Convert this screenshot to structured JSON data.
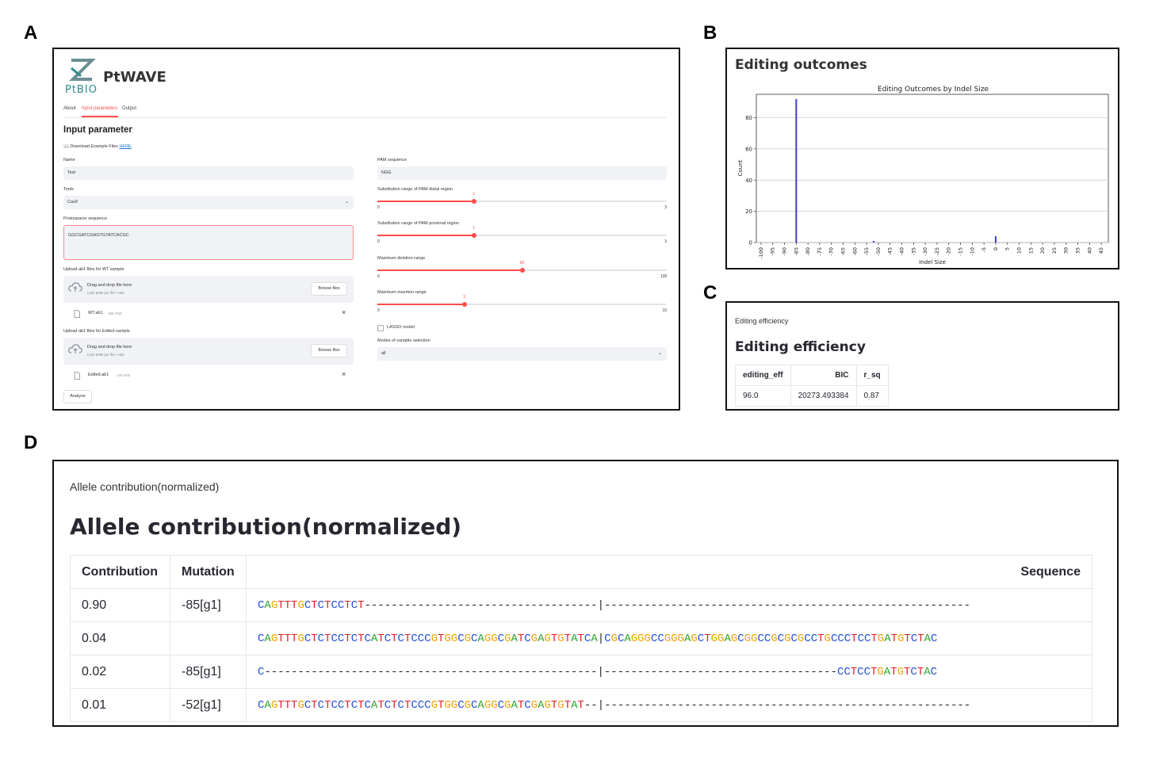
{
  "panel_labels": {
    "a": "A",
    "b": "B",
    "c": "C",
    "d": "D"
  },
  "app": {
    "logo_text": "PtBIO",
    "title": "PtWAVE",
    "tabs": [
      "About",
      "Input parameters",
      "Output"
    ],
    "active_tab": "Input parameters",
    "section_title": "Input parameter",
    "download_prefix": "📖 Download Example Files ",
    "download_link": "HERE",
    "download_suffix": ".",
    "name": {
      "label": "Name",
      "value": "Test"
    },
    "tools": {
      "label": "Tools",
      "value": "Cas9"
    },
    "protospacer": {
      "label": "Protospacer sequence",
      "value": "GGCGATCGAGTGTATCACGC"
    },
    "upload_wt": {
      "label": "Upload ab1 files for WT sample",
      "drag": "Drag and drop file here",
      "limit": "Limit 5MB per file • AB1",
      "browse": "Browse files",
      "file": "WT.ab1",
      "size": "188.7KB"
    },
    "upload_edited": {
      "label": "Upload ab1 files for Edited sample",
      "drag": "Drag and drop file here",
      "limit": "Limit 5MB per file • AB1",
      "browse": "Browse files",
      "file": "Edited.ab1",
      "size": "178.4KB"
    },
    "analyze": "Analyze",
    "pam": {
      "label": "PAM sequence",
      "value": "NGG"
    },
    "sliders": [
      {
        "label": "Substitution range of PAM-distal region",
        "value": 1,
        "min": 0,
        "max": 3
      },
      {
        "label": "Substitution range of PAM-proximal region",
        "value": 1,
        "min": 0,
        "max": 3
      },
      {
        "label": "Maximum deletion range",
        "value": 50,
        "min": 0,
        "max": 100
      },
      {
        "label": "Maximum insertion range",
        "value": 3,
        "min": 0,
        "max": 10
      }
    ],
    "lasso": {
      "label": "LASSO model",
      "checked": false
    },
    "modes": {
      "label": "Modes of variable selection",
      "value": "all"
    }
  },
  "editing_outcomes": {
    "heading": "Editing outcomes",
    "chart_data": {
      "type": "bar",
      "title": "Editing Outcomes by Indel Size",
      "xlabel": "Indel Size",
      "ylabel": "Count",
      "xlim": [
        -102,
        48
      ],
      "ylim": [
        0,
        95
      ],
      "yticks": [
        0,
        20,
        40,
        60,
        80
      ],
      "xticks": [
        -100,
        -95,
        -90,
        -85,
        -80,
        -75,
        -70,
        -65,
        -60,
        -55,
        -50,
        -45,
        -40,
        -35,
        -30,
        -25,
        -20,
        -15,
        -10,
        -5,
        0,
        5,
        10,
        15,
        20,
        25,
        30,
        35,
        40,
        45
      ],
      "x": [
        -85,
        -52,
        0
      ],
      "values": [
        92,
        1,
        4
      ],
      "grid": true,
      "bar_color": "#3b3bd6"
    }
  },
  "editing_efficiency": {
    "small_title": "Editing efficiency",
    "title": "Editing efficiency",
    "columns": [
      "editing_eff",
      "BIC",
      "r_sq"
    ],
    "rows": [
      [
        "96.0",
        "20273.493384",
        "0.87"
      ]
    ]
  },
  "allele": {
    "small_title": "Allele contribution(normalized)",
    "title": "Allele contribution(normalized)",
    "columns": [
      "Contribution",
      "Mutation",
      "Sequence"
    ],
    "rows": [
      {
        "contribution": "0.90",
        "mutation": "-85[g1]",
        "sequence": "CAGTTTGCTCTCCTCT-----------------------------------|-------------------------------------------------------"
      },
      {
        "contribution": "0.04",
        "mutation": "",
        "sequence": "CAGTTTGCTCTCCTCTCATCTCTCCCGTGGCGCAGGCGATCGAGTGTATCA|CGCAGGGCCGGGAGCTGGAGCGGCCGCGCGCCTGCCCTCCTGATGTCTAC"
      },
      {
        "contribution": "0.02",
        "mutation": "-85[g1]",
        "sequence": "C--------------------------------------------------|-----------------------------------CCTCCTGATGTCTAC"
      },
      {
        "contribution": "0.01",
        "mutation": "-52[g1]",
        "sequence": "CAGTTTGCTCTCCTCTCATCTCTCCCGTGGCGCAGGCGATCGAGTGTAT--|-------------------------------------------------------"
      }
    ],
    "base_colors": {
      "A": "#2ca02c",
      "C": "#1f4fd6",
      "G": "#f0a500",
      "T": "#e0202a",
      "-": "#222222",
      "|": "#222222"
    }
  }
}
